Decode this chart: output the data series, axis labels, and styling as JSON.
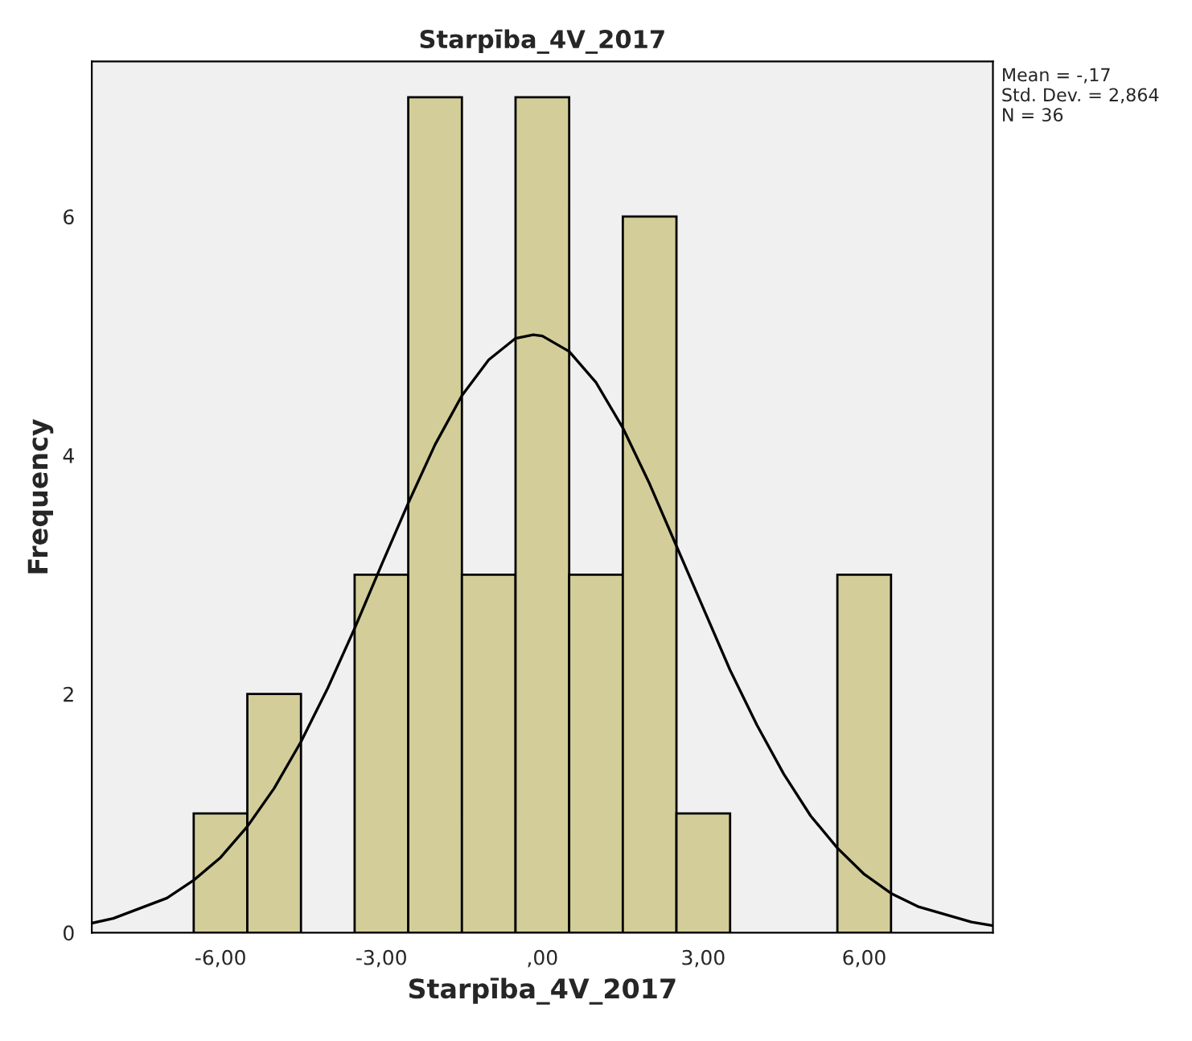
{
  "chart_data": {
    "type": "histogram",
    "title": "Starpība_4V_2017",
    "xlabel": "Starpība_4V_2017",
    "ylabel": "Frequency",
    "bins": [
      -6.5,
      -5.5,
      -4.5,
      -3.5,
      -2.5,
      -1.5,
      -0.5,
      0.5,
      1.5,
      2.5,
      3.5,
      4.5,
      5.5,
      6.5
    ],
    "values": [
      1,
      2,
      0,
      3,
      7,
      3,
      7,
      3,
      6,
      1,
      0,
      0,
      3
    ],
    "color": "#d3ce99",
    "series": [
      {
        "type": "line",
        "color": "#000000",
        "x": [
          -8.4,
          -8,
          -7,
          -6.5,
          -6,
          -5.5,
          -5,
          -4.5,
          -4,
          -3.5,
          -3,
          -2.5,
          -2,
          -1.5,
          -1,
          -0.5,
          -0.17,
          0,
          0.5,
          1,
          1.5,
          2,
          2.5,
          3,
          3.5,
          4,
          4.5,
          5,
          5.5,
          6,
          6.5,
          7,
          8,
          8.4
        ],
        "values": [
          0.08,
          0.12,
          0.29,
          0.44,
          0.63,
          0.89,
          1.21,
          1.6,
          2.05,
          2.55,
          3.08,
          3.6,
          4.09,
          4.5,
          4.8,
          4.98,
          5.01,
          5.0,
          4.87,
          4.61,
          4.23,
          3.76,
          3.24,
          2.72,
          2.2,
          1.74,
          1.33,
          0.98,
          0.71,
          0.49,
          0.33,
          0.22,
          0.09,
          0.06
        ]
      }
    ],
    "xlim": [
      -8.4,
      8.4
    ],
    "ylim": [
      0,
      7.3
    ],
    "xticks": [
      {
        "value": -6,
        "label": "-6,00"
      },
      {
        "value": -3,
        "label": "-3,00"
      },
      {
        "value": 0,
        "label": ",00"
      },
      {
        "value": 3,
        "label": "3,00"
      },
      {
        "value": 6,
        "label": "6,00"
      }
    ],
    "yticks": [
      0,
      2,
      4,
      6
    ],
    "annotations": [
      "Mean = -,17\nStd. Dev. = 2,864\nN = 36"
    ]
  }
}
